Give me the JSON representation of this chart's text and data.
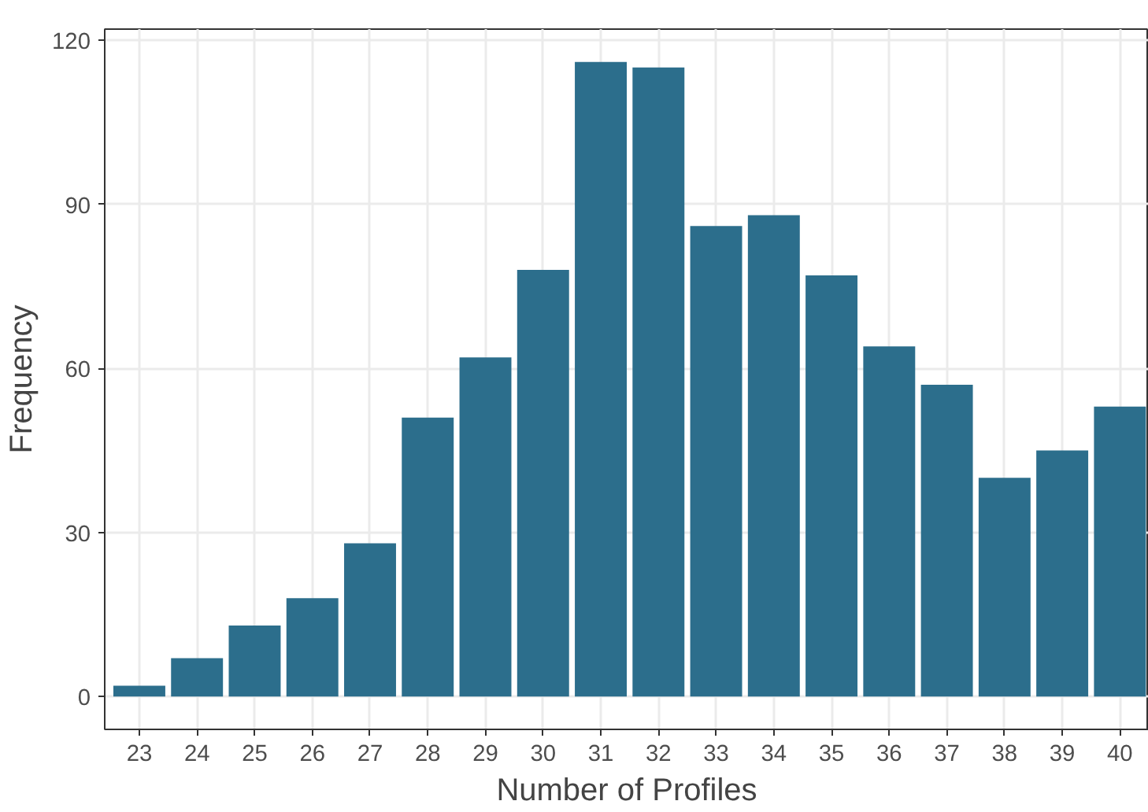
{
  "chart_data": {
    "type": "bar",
    "xlabel": "Number of Profiles",
    "ylabel": "Frequency",
    "categories": [
      "23",
      "24",
      "25",
      "26",
      "27",
      "28",
      "29",
      "30",
      "31",
      "32",
      "33",
      "34",
      "35",
      "36",
      "37",
      "38",
      "39",
      "40"
    ],
    "values": [
      2,
      7,
      13,
      18,
      28,
      51,
      62,
      78,
      116,
      115,
      86,
      88,
      77,
      64,
      57,
      40,
      45,
      53
    ],
    "color": "#2c6e8c",
    "ylim": [
      -6,
      122
    ],
    "yticks": [
      0,
      30,
      60,
      90,
      120
    ],
    "grid": true
  }
}
